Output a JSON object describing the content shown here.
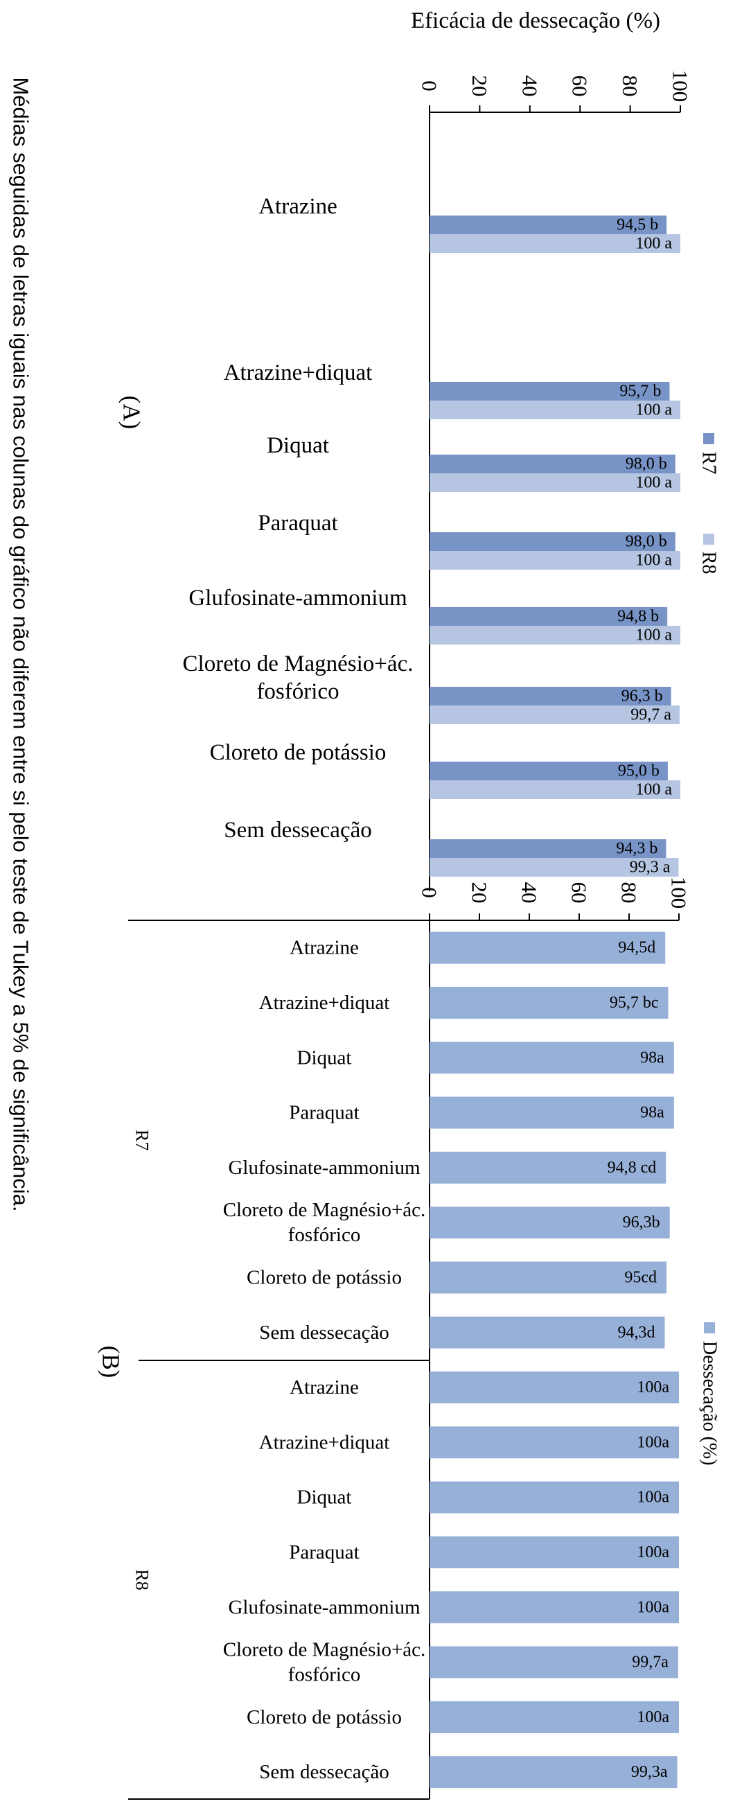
{
  "note": "Médias seguidas de letras iguais nas colunas do gráfico não diferem entre si pelo teste de Tukey a 5% de significância.",
  "colors": {
    "r7": "#7894c6",
    "r8": "#b6c6e2",
    "dessecacao": "#97b0d8",
    "axis": "#000000"
  },
  "chart_data": [
    {
      "type": "bar",
      "panel_label": "(A)",
      "title": "",
      "ylabel": "Eficácia de dessecação  (%)",
      "ylim": [
        0,
        100
      ],
      "ticks": [
        "0",
        "20",
        "40",
        "60",
        "80",
        "100"
      ],
      "legend_position": "right",
      "categories": [
        "Atrazine",
        "Atrazine+diquat",
        "Diquat",
        "Paraquat",
        "Glufosinate-ammonium",
        "Cloreto de Magnésio+ác. fosfórico",
        "Cloreto de potássio",
        "Sem dessecação"
      ],
      "category_lines": [
        [
          "Atrazine"
        ],
        [
          "Atrazine+diquat"
        ],
        [
          "Diquat"
        ],
        [
          "Paraquat"
        ],
        [
          "Glufosinate-ammonium"
        ],
        [
          "Cloreto de Magnésio+ác.",
          "fosfórico"
        ],
        [
          "Cloreto de potássio"
        ],
        [
          "Sem dessecação"
        ]
      ],
      "series": [
        {
          "name": "R7",
          "values": [
            94.5,
            95.7,
            98.0,
            98.0,
            94.8,
            96.3,
            95.0,
            94.3
          ],
          "labels": [
            "94,5 b",
            "95,7 b",
            "98,0 b",
            "98,0 b",
            "94,8 b",
            "96,3 b",
            "95,0 b",
            "94,3 b"
          ]
        },
        {
          "name": "R8",
          "values": [
            100,
            100,
            100,
            100,
            100,
            99.7,
            100,
            99.3
          ],
          "labels": [
            "100 a",
            "100 a",
            "100 a",
            "100 a",
            "100 a",
            "99,7 a",
            "100 a",
            "99,3 a"
          ]
        }
      ]
    },
    {
      "type": "bar",
      "panel_label": "(B)",
      "title": "",
      "ylim": [
        0,
        100
      ],
      "ticks": [
        "0",
        "20",
        "40",
        "60",
        "80",
        "100"
      ],
      "legend_position": "right",
      "series_name": "Dessecação (%)",
      "groups": [
        {
          "name": "R7",
          "categories": [
            "Atrazine",
            "Atrazine+diquat",
            "Diquat",
            "Paraquat",
            "Glufosinate-ammonium",
            "Cloreto de Magnésio+ác. fosfórico",
            "Cloreto de potássio",
            "Sem dessecação"
          ],
          "category_lines": [
            [
              "Atrazine"
            ],
            [
              "Atrazine+diquat"
            ],
            [
              "Diquat"
            ],
            [
              "Paraquat"
            ],
            [
              "Glufosinate-ammonium"
            ],
            [
              "Cloreto de Magnésio+ác.",
              "fosfórico"
            ],
            [
              "Cloreto de potássio"
            ],
            [
              "Sem dessecação"
            ]
          ],
          "values": [
            94.5,
            95.7,
            98,
            98,
            94.8,
            96.3,
            95,
            94.3
          ],
          "labels": [
            "94,5d",
            "95,7 bc",
            "98a",
            "98a",
            "94,8 cd",
            "96,3b",
            "95cd",
            "94,3d"
          ]
        },
        {
          "name": "R8",
          "categories": [
            "Atrazine",
            "Atrazine+diquat",
            "Diquat",
            "Paraquat",
            "Glufosinate-ammonium",
            "Cloreto de Magnésio+ác. fosfórico",
            "Cloreto de potássio",
            "Sem dessecação"
          ],
          "category_lines": [
            [
              "Atrazine"
            ],
            [
              "Atrazine+diquat"
            ],
            [
              "Diquat"
            ],
            [
              "Paraquat"
            ],
            [
              "Glufosinate-ammonium"
            ],
            [
              "Cloreto de Magnésio+ác.",
              "fosfórico"
            ],
            [
              "Cloreto de potássio"
            ],
            [
              "Sem dessecação"
            ]
          ],
          "values": [
            100,
            100,
            100,
            100,
            100,
            99.7,
            100,
            99.3
          ],
          "labels": [
            "100a",
            "100a",
            "100a",
            "100a",
            "100a",
            "99,7a",
            "100a",
            "99,3a"
          ]
        }
      ]
    }
  ]
}
